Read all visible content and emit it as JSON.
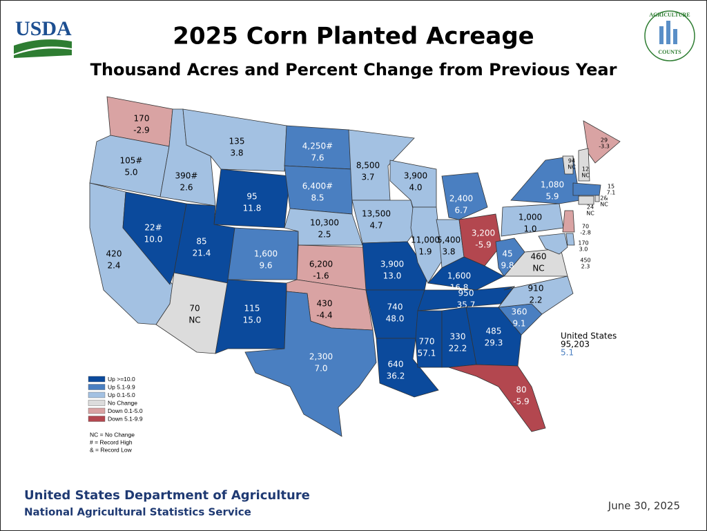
{
  "header": {
    "logo_left": "USDA",
    "logo_right_top": "AGRICULTURE",
    "logo_right_bottom": "COUNTS",
    "title": "2025 Corn Planted Acreage",
    "subtitle": "Thousand Acres and Percent Change from Previous Year"
  },
  "legend": [
    {
      "label": "Up >=10.0",
      "color": "#0b4a9c"
    },
    {
      "label": "Up 5.1-9.9",
      "color": "#4a7fc1"
    },
    {
      "label": "Up 0.1-5.0",
      "color": "#a3c1e2"
    },
    {
      "label": "No Change",
      "color": "#dcdcdc"
    },
    {
      "label": "Down 0.1-5.0",
      "color": "#d9a3a3"
    },
    {
      "label": "Down 5.1-9.9",
      "color": "#b3474f"
    }
  ],
  "notes": [
    "NC = No Change",
    "# = Record High",
    "& = Record Low"
  ],
  "states": [
    {
      "acres": "170",
      "change": "-2.9",
      "level": 4
    },
    {
      "acres": "105#",
      "change": "5.0",
      "level": 2
    },
    {
      "acres": "420",
      "change": "2.4",
      "level": 2
    },
    {
      "acres": "390#",
      "change": "2.6",
      "level": 2
    },
    {
      "acres": "22#",
      "change": "10.0",
      "level": 0
    },
    {
      "acres": "135",
      "change": "3.8",
      "level": 2
    },
    {
      "acres": "95",
      "change": "11.8",
      "level": 0
    },
    {
      "acres": "85",
      "change": "21.4",
      "level": 0
    },
    {
      "acres": "1,600",
      "change": "9.6",
      "level": 1
    },
    {
      "acres": "70",
      "change": "NC",
      "level": 3
    },
    {
      "acres": "115",
      "change": "15.0",
      "level": 0
    },
    {
      "acres": "4,250#",
      "change": "7.6",
      "level": 1
    },
    {
      "acres": "6,400#",
      "change": "8.5",
      "level": 1
    },
    {
      "acres": "10,300",
      "change": "2.5",
      "level": 2
    },
    {
      "acres": "6,200",
      "change": "-1.6",
      "level": 4
    },
    {
      "acres": "430",
      "change": "-4.4",
      "level": 4
    },
    {
      "acres": "2,300",
      "change": "7.0",
      "level": 1
    },
    {
      "acres": "8,500",
      "change": "3.7",
      "level": 2
    },
    {
      "acres": "13,500",
      "change": "4.7",
      "level": 2
    },
    {
      "acres": "3,900",
      "change": "13.0",
      "level": 0
    },
    {
      "acres": "740",
      "change": "48.0",
      "level": 0
    },
    {
      "acres": "640",
      "change": "36.2",
      "level": 0
    },
    {
      "acres": "3,900",
      "change": "4.0",
      "level": 2
    },
    {
      "acres": "11,000",
      "change": "1.9",
      "level": 2
    },
    {
      "acres": "2,400",
      "change": "6.7",
      "level": 1
    },
    {
      "acres": "5,400",
      "change": "3.8",
      "level": 2
    },
    {
      "acres": "3,200",
      "change": "-5.9",
      "level": 5
    },
    {
      "acres": "1,600",
      "change": "16.8",
      "level": 0
    },
    {
      "acres": "950",
      "change": "35.7",
      "level": 0
    },
    {
      "acres": "770",
      "change": "57.1",
      "level": 0
    },
    {
      "acres": "330",
      "change": "22.2",
      "level": 0
    },
    {
      "acres": "485",
      "change": "29.3",
      "level": 0
    },
    {
      "acres": "80",
      "change": "-5.9",
      "level": 5
    },
    {
      "acres": "360",
      "change": "9.1",
      "level": 1
    },
    {
      "acres": "910",
      "change": "2.2",
      "level": 2
    },
    {
      "acres": "460",
      "change": "NC",
      "level": 3
    },
    {
      "acres": "45",
      "change": "9.8",
      "level": 1
    },
    {
      "acres": "1,000",
      "change": "1.0",
      "level": 2
    },
    {
      "acres": "1,080",
      "change": "5.9",
      "level": 1
    },
    {
      "acres": "29",
      "change": "-3.3",
      "level": 4
    },
    {
      "acres": "94",
      "change": "NC",
      "level": 3
    },
    {
      "acres": "12",
      "change": "NC",
      "level": 3
    },
    {
      "acres": "15",
      "change": "7.1",
      "level": 1
    },
    {
      "acres": "2&",
      "change": "NC",
      "level": 3
    },
    {
      "acres": "24",
      "change": "NC",
      "level": 3
    },
    {
      "acres": "70",
      "change": "-2.8",
      "level": 4
    },
    {
      "acres": "170",
      "change": "3.0",
      "level": 2
    },
    {
      "acres": "450",
      "change": "2.3",
      "level": 2
    }
  ],
  "us_total": {
    "name": "United States",
    "acres": "95,203",
    "change": "5.1"
  },
  "footer": {
    "department": "United States Department of Agriculture",
    "service": "National Agricultural Statistics Service",
    "date": "June 30, 2025"
  }
}
